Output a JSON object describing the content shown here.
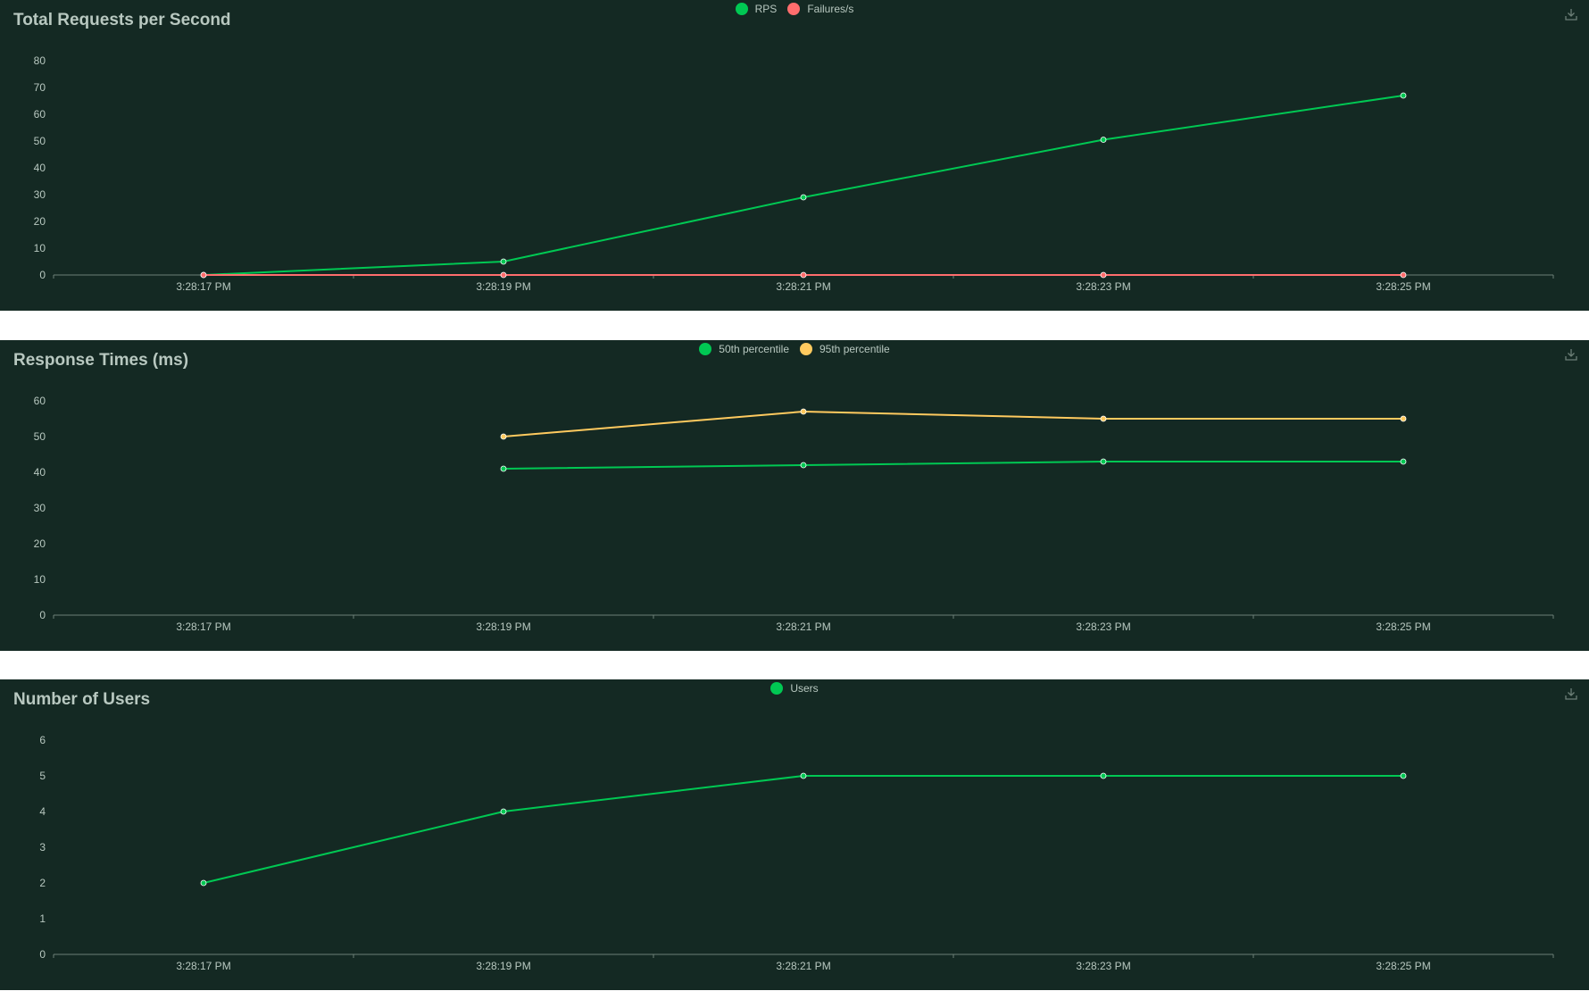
{
  "charts": [
    {
      "title": "Total Requests per Second",
      "legend": [
        {
          "name": "RPS",
          "color": "#00c853"
        },
        {
          "name": "Failures/s",
          "color": "#ff6d6d"
        }
      ],
      "download_icon": "download-icon"
    },
    {
      "title": "Response Times (ms)",
      "legend": [
        {
          "name": "50th percentile",
          "color": "#00c853"
        },
        {
          "name": "95th percentile",
          "color": "#ffca5f"
        }
      ],
      "download_icon": "download-icon"
    },
    {
      "title": "Number of Users",
      "legend": [
        {
          "name": "Users",
          "color": "#00c853"
        }
      ],
      "download_icon": "download-icon"
    }
  ],
  "chart_data": [
    {
      "type": "line",
      "title": "Total Requests per Second",
      "x": [
        "3:28:17 PM",
        "3:28:19 PM",
        "3:28:21 PM",
        "3:28:23 PM",
        "3:28:25 PM"
      ],
      "yticks": [
        0,
        10,
        20,
        30,
        40,
        50,
        60,
        70,
        80
      ],
      "ylim": [
        0,
        80
      ],
      "grid": false,
      "legend_position": "top-center",
      "series": [
        {
          "name": "RPS",
          "color": "#00c853",
          "values": [
            0,
            5,
            29,
            50.5,
            67
          ]
        },
        {
          "name": "Failures/s",
          "color": "#ff6d6d",
          "values": [
            0,
            0,
            0,
            0,
            0
          ]
        }
      ]
    },
    {
      "type": "line",
      "title": "Response Times (ms)",
      "x": [
        "3:28:17 PM",
        "3:28:19 PM",
        "3:28:21 PM",
        "3:28:23 PM",
        "3:28:25 PM"
      ],
      "yticks": [
        0,
        10,
        20,
        30,
        40,
        50,
        60
      ],
      "ylim": [
        0,
        60
      ],
      "grid": false,
      "legend_position": "top-center",
      "series": [
        {
          "name": "50th percentile",
          "color": "#00c853",
          "values": [
            null,
            41,
            42,
            43,
            43
          ]
        },
        {
          "name": "95th percentile",
          "color": "#ffca5f",
          "values": [
            null,
            50,
            57,
            55,
            55
          ]
        }
      ]
    },
    {
      "type": "line",
      "title": "Number of Users",
      "x": [
        "3:28:17 PM",
        "3:28:19 PM",
        "3:28:21 PM",
        "3:28:23 PM",
        "3:28:25 PM"
      ],
      "yticks": [
        0,
        1,
        2,
        3,
        4,
        5,
        6
      ],
      "ylim": [
        0,
        6
      ],
      "grid": false,
      "legend_position": "top-center",
      "series": [
        {
          "name": "Users",
          "color": "#00c853",
          "values": [
            2,
            4,
            5,
            5,
            5
          ]
        }
      ]
    }
  ]
}
